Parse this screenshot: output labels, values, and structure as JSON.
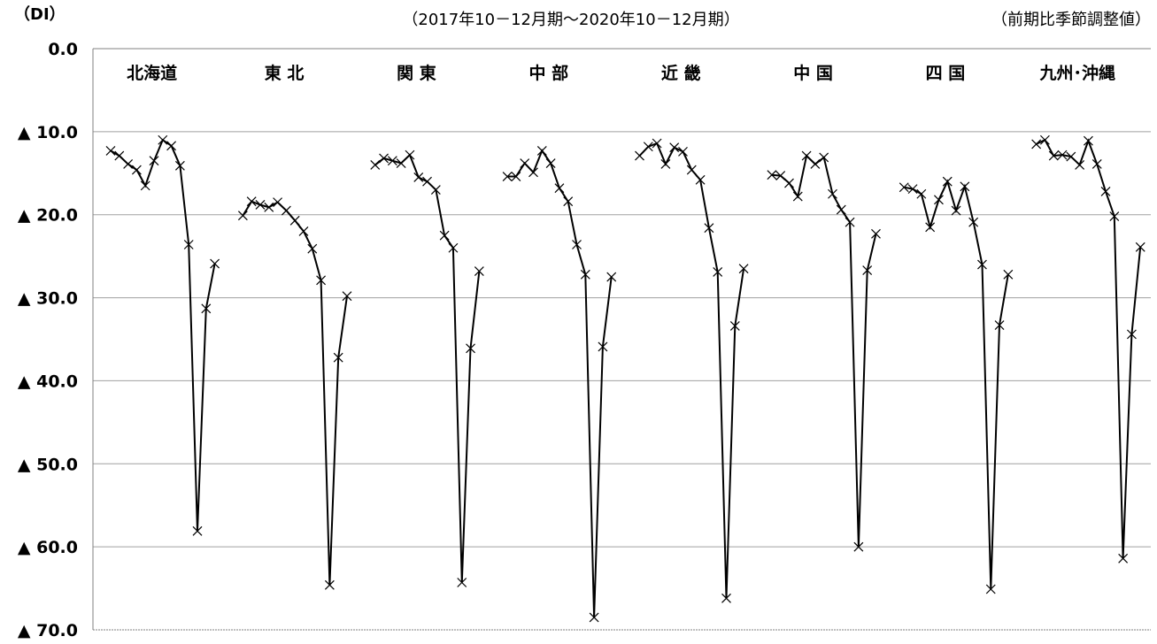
{
  "chart_data": {
    "type": "line",
    "unit_label": "（DI）",
    "period_label": "（2017年10－12月期～2020年10－12月期）",
    "note_label": "（前期比季節調整値）",
    "y_axis": {
      "min": 0,
      "max": 70,
      "step": 10,
      "inverted": true,
      "tick_labels": [
        "0.0",
        "▲ 10.0",
        "▲ 20.0",
        "▲ 30.0",
        "▲ 40.0",
        "▲ 50.0",
        "▲ 60.0",
        "▲ 70.0"
      ]
    },
    "grid": true,
    "marker": "x",
    "color": "#000000",
    "series": [
      {
        "name": "北海道",
        "values": [
          -12.3,
          -12.9,
          -13.9,
          -14.6,
          -16.5,
          -13.5,
          -11.0,
          -11.7,
          -14.1,
          -23.6,
          -58.1,
          -31.3,
          -25.9
        ]
      },
      {
        "name": "東 北",
        "values": [
          -20.1,
          -18.4,
          -18.8,
          -19.1,
          -18.5,
          -19.5,
          -20.7,
          -22.0,
          -24.1,
          -27.9,
          -64.6,
          -37.2,
          -29.8
        ]
      },
      {
        "name": "関 東",
        "values": [
          -14.0,
          -13.2,
          -13.5,
          -13.8,
          -12.8,
          -15.5,
          -16.0,
          -17.0,
          -22.5,
          -24.0,
          -64.3,
          -36.1,
          -26.8
        ]
      },
      {
        "name": "中 部",
        "values": [
          -15.4,
          -15.4,
          -13.8,
          -14.9,
          -12.3,
          -13.8,
          -16.8,
          -18.4,
          -23.6,
          -27.2,
          -68.5,
          -35.9,
          -27.5
        ]
      },
      {
        "name": "近 畿",
        "values": [
          -12.9,
          -11.8,
          -11.4,
          -13.9,
          -11.9,
          -12.4,
          -14.6,
          -15.8,
          -21.6,
          -26.9,
          -66.2,
          -33.4,
          -26.5
        ]
      },
      {
        "name": "中 国",
        "values": [
          -15.2,
          -15.3,
          -16.2,
          -17.8,
          -12.9,
          -13.9,
          -13.1,
          -17.5,
          -19.4,
          -20.9,
          -60.0,
          -26.7,
          -22.3
        ]
      },
      {
        "name": "四 国",
        "values": [
          -16.7,
          -16.9,
          -17.5,
          -21.5,
          -18.2,
          -16.0,
          -19.5,
          -16.6,
          -20.9,
          -26.0,
          -65.1,
          -33.3,
          -27.2
        ]
      },
      {
        "name": "九州･沖縄",
        "values": [
          -11.5,
          -11.0,
          -12.9,
          -12.8,
          -13.0,
          -14.0,
          -11.1,
          -13.9,
          -17.2,
          -20.2,
          -61.4,
          -34.4,
          -23.9
        ]
      }
    ]
  }
}
